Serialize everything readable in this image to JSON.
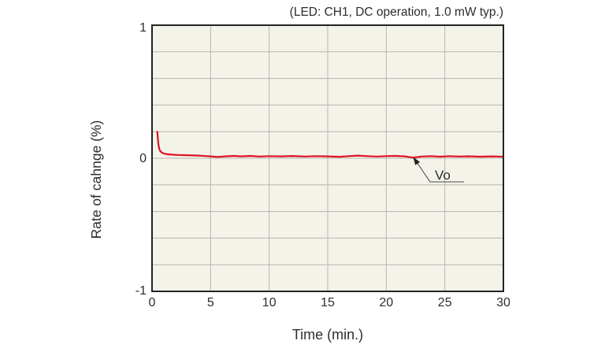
{
  "chart_data": {
    "type": "line",
    "title": "(LED: CH1, DC operation, 1.0 mW typ.)",
    "xlabel": "Time (min.)",
    "ylabel": "Rate of cahnge (%)",
    "xlim": [
      0,
      30
    ],
    "ylim": [
      -1,
      1
    ],
    "x_tick_values": [
      0,
      5,
      10,
      15,
      20,
      25,
      30
    ],
    "x_tick_labels": [
      "0",
      "5",
      "10",
      "15",
      "20",
      "25",
      "30"
    ],
    "y_tick_values": [
      1,
      0,
      -1
    ],
    "y_tick_labels": [
      "1",
      "0",
      "-1"
    ],
    "y_grid_step": 0.2,
    "grid": true,
    "legend_position": "none",
    "series": [
      {
        "name": "Vo",
        "color": "#e01322",
        "x": [
          0.45,
          0.5,
          0.55,
          0.62,
          0.72,
          0.85,
          1.0,
          1.3,
          1.7,
          2.2,
          3.0,
          4.0,
          5.0,
          5.6,
          6.2,
          7.0,
          7.6,
          8.4,
          9.2,
          10.0,
          11.0,
          12.0,
          13.0,
          14.0,
          15.0,
          16.0,
          16.8,
          17.6,
          18.4,
          19.2,
          20.0,
          20.8,
          21.6,
          22.3,
          23.0,
          23.8,
          24.6,
          25.4,
          26.2,
          27.0,
          28.0,
          29.0,
          30.0
        ],
        "y": [
          0.2,
          0.145,
          0.1,
          0.07,
          0.052,
          0.042,
          0.036,
          0.03,
          0.027,
          0.025,
          0.023,
          0.02,
          0.014,
          0.01,
          0.014,
          0.018,
          0.014,
          0.018,
          0.013,
          0.016,
          0.014,
          0.017,
          0.013,
          0.016,
          0.014,
          0.011,
          0.016,
          0.02,
          0.016,
          0.013,
          0.016,
          0.018,
          0.014,
          0.005,
          0.013,
          0.016,
          0.012,
          0.016,
          0.013,
          0.015,
          0.012,
          0.014,
          0.012
        ]
      }
    ],
    "annotation": {
      "label": "Vo",
      "points_at_x": 22.5,
      "points_at_y": 0.01
    }
  },
  "colors": {
    "plot_background": "#f4f3ea",
    "gridline": "#b6b5ae",
    "frame": "#232323",
    "series_red": "#e01322",
    "text": "#2d2d2d",
    "leader_line": "#4a4a4a"
  }
}
